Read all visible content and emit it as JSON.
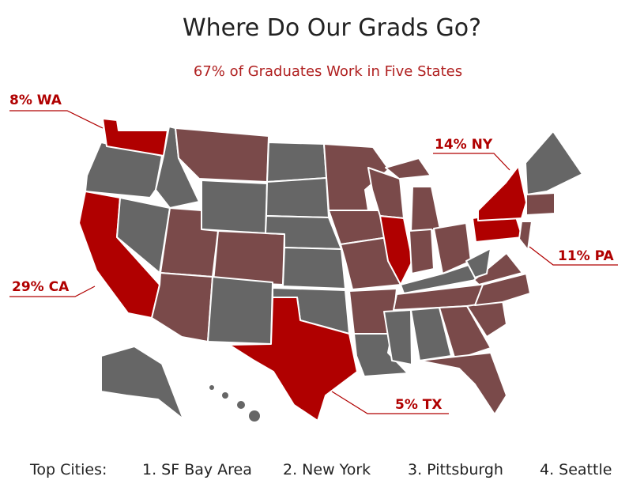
{
  "header": {
    "title": "Where Do Our Grads Go?",
    "subtitle": "67% of Graduates Work in Five States"
  },
  "callouts": [
    {
      "label": "8% WA"
    },
    {
      "label": "14% NY"
    },
    {
      "label": "11% PA"
    },
    {
      "label": "29% CA"
    },
    {
      "label": "5% TX"
    }
  ],
  "top_cities": {
    "label": "Top Cities:",
    "items": [
      "1. SF Bay Area",
      "2. New York",
      "3. Pittsburgh",
      "4. Seattle"
    ]
  }
}
